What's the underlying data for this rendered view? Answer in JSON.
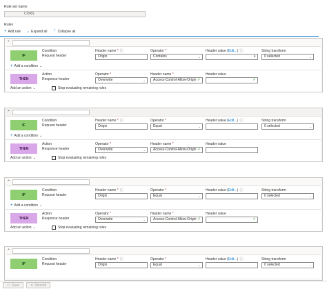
{
  "ruleset": {
    "label": "Rule set name",
    "value": "CORS"
  },
  "rules_label": "Rules",
  "toolbar": {
    "add_rule": "Add rule",
    "expand_all": "Expand all",
    "collapse_all": "Collapse all"
  },
  "labels": {
    "condition": "Condition",
    "request_header": "Request header",
    "header_name": "Header name",
    "operator": "Operator",
    "header_value": "Header value",
    "edit": "Edit...",
    "string_transform": "String transform",
    "add_condition": "Add a condition",
    "action": "Action",
    "response_header": "Response header",
    "add_action": "Add an action",
    "stop_eval": "Stop evaluating remaining rules",
    "if": "IF",
    "then": "THEN"
  },
  "icons": {
    "add": "plus-icon",
    "expand": "chevron-down-icon",
    "collapse": "chevron-up-icon",
    "info": "info-icon",
    "valid": "checkmark-icon",
    "save": "save-icon",
    "discard": "close-icon"
  },
  "rules": [
    {
      "condition": {
        "header_name": "Origin",
        "operator": "Contains",
        "transform": "0 selected"
      },
      "action": {
        "operator": "Overwrite",
        "header_name": "Access-Control-Allow-Origin"
      }
    },
    {
      "condition": {
        "header_name": "Origin",
        "operator": "Equal",
        "transform": "0 selected"
      },
      "action": {
        "operator": "Overwrite",
        "header_name": "Access-Control-Allow-Origin"
      }
    },
    {
      "condition": {
        "header_name": "Origin",
        "operator": "Equal",
        "transform": "0 selected"
      },
      "action": {
        "operator": "Overwrite",
        "header_name": "Access-Control-Allow-Origin"
      }
    },
    {
      "condition": {
        "header_name": "Origin",
        "operator": "Equal",
        "transform": "0 selected"
      }
    }
  ],
  "footer": {
    "save": "Save",
    "discard": "Discard"
  }
}
